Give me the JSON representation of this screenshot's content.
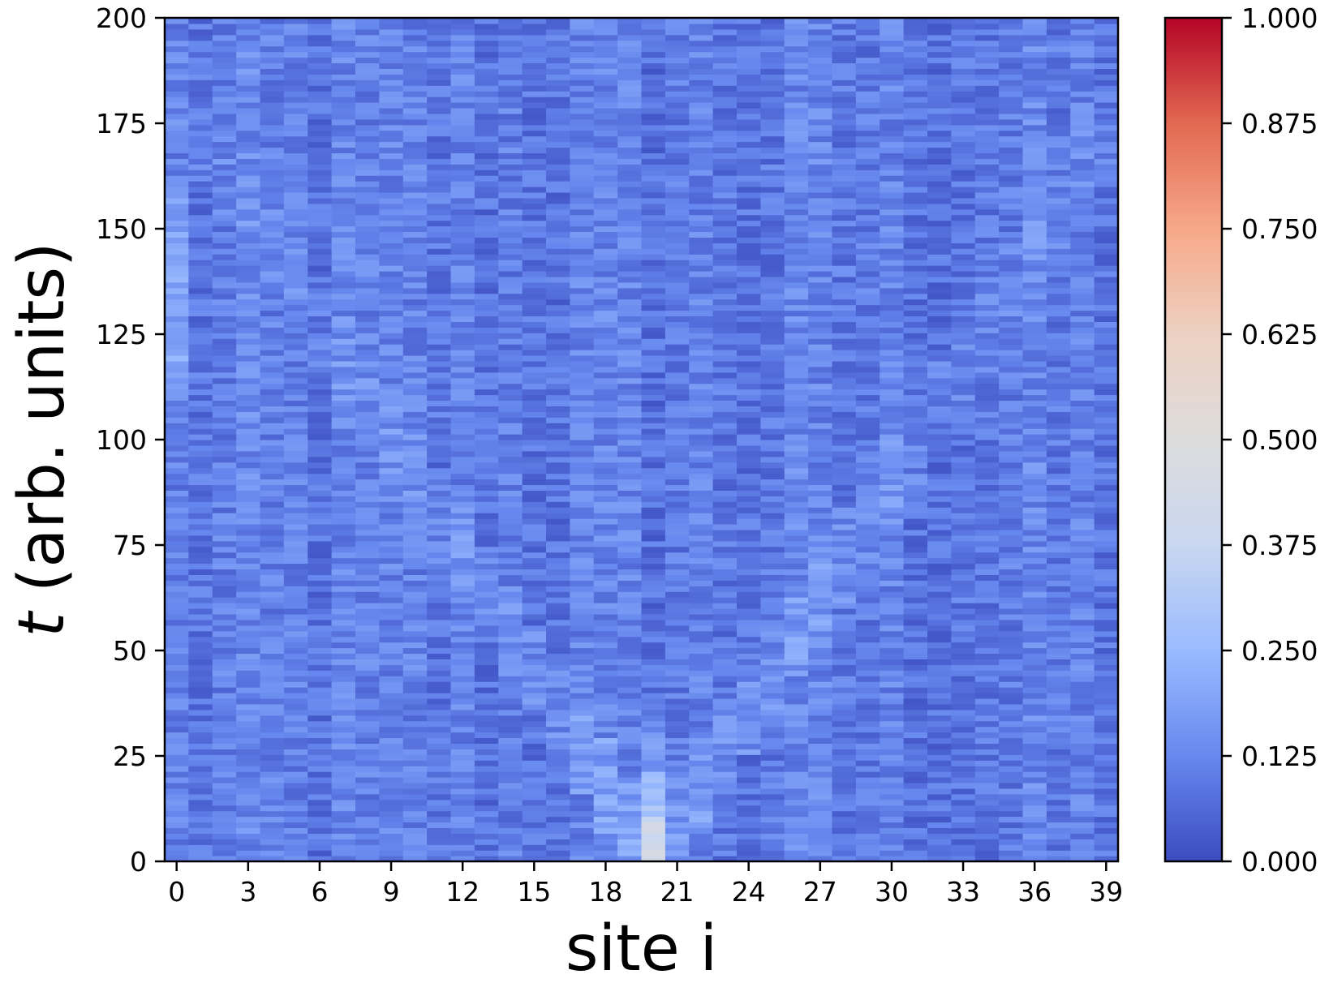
{
  "chart_data": {
    "type": "heatmap",
    "title": "",
    "xlabel": "site i",
    "ylabel_var": "t",
    "ylabel_rest": " (arb. units)",
    "x_range": [
      0,
      39
    ],
    "y_range": [
      0,
      200
    ],
    "x_ticks": [
      0,
      3,
      6,
      9,
      12,
      15,
      18,
      21,
      24,
      27,
      30,
      33,
      36,
      39
    ],
    "y_ticks": [
      0,
      25,
      50,
      75,
      100,
      125,
      150,
      175,
      200
    ],
    "colorbar": {
      "range": [
        0,
        1
      ],
      "ticks": [
        "0.000",
        "0.125",
        "0.250",
        "0.375",
        "0.500",
        "0.625",
        "0.750",
        "0.875",
        "1.000"
      ],
      "colormap": "coolwarm",
      "colormap_stops": [
        "#3b4cc0",
        "#6788ee",
        "#9abbff",
        "#c9d7f0",
        "#dddcdc",
        "#edd1c2",
        "#f7a889",
        "#e26952",
        "#b40426"
      ]
    },
    "grid": false,
    "legend": "none",
    "description_values": {
      "initial_peak_site": 20,
      "initial_peak_value": 0.45,
      "background_level": 0.1
    }
  }
}
